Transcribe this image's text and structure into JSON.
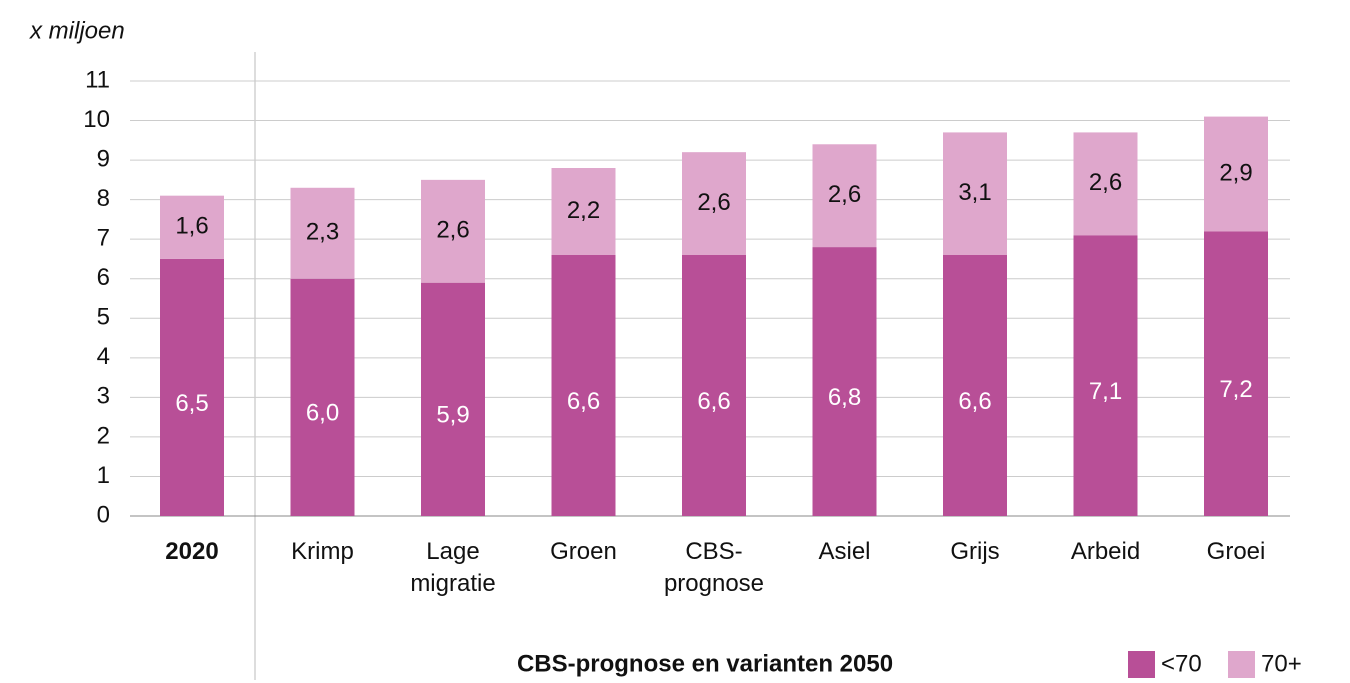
{
  "chart_data": {
    "type": "stacked_bar",
    "y_axis_label": "x miljoen",
    "x_axis_title": "CBS-prognose en varianten 2050",
    "categories": [
      "2020",
      "Krimp",
      "Lage\nmigratie",
      "Groen",
      "CBS-\nprognose",
      "Asiel",
      "Grijs",
      "Arbeid",
      "Groei"
    ],
    "series": [
      {
        "name": "<70",
        "color": "#b84f97",
        "values": [
          6.5,
          6.0,
          5.9,
          6.6,
          6.6,
          6.8,
          6.6,
          7.1,
          7.2
        ],
        "value_labels": [
          "6,5",
          "6,0",
          "5,9",
          "6,6",
          "6,6",
          "6,8",
          "6,6",
          "7,1",
          "7,2"
        ]
      },
      {
        "name": "70+",
        "color": "#dfa7cc",
        "values": [
          1.6,
          2.3,
          2.6,
          2.2,
          2.6,
          2.6,
          3.1,
          2.6,
          2.9
        ],
        "value_labels": [
          "1,6",
          "2,3",
          "2,6",
          "2,2",
          "2,6",
          "2,6",
          "3,1",
          "2,6",
          "2,9"
        ]
      }
    ],
    "ylim": [
      0,
      11
    ],
    "yticks": [
      0,
      1,
      2,
      3,
      4,
      5,
      6,
      7,
      8,
      9,
      10,
      11
    ],
    "grid": true,
    "legend": "bottom-right"
  }
}
